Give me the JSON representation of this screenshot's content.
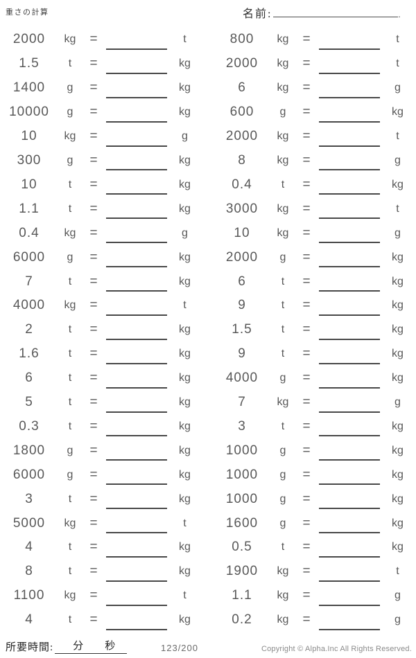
{
  "header": {
    "title": "重さの計算",
    "name_label": "名前:",
    "name_suffix": "."
  },
  "equals": "=",
  "columns": [
    {
      "problems": [
        {
          "value": "2000",
          "from": "kg",
          "to": "t"
        },
        {
          "value": "1.5",
          "from": "t",
          "to": "kg"
        },
        {
          "value": "1400",
          "from": "g",
          "to": "kg"
        },
        {
          "value": "10000",
          "from": "g",
          "to": "kg"
        },
        {
          "value": "10",
          "from": "kg",
          "to": "g"
        },
        {
          "value": "300",
          "from": "g",
          "to": "kg"
        },
        {
          "value": "10",
          "from": "t",
          "to": "kg"
        },
        {
          "value": "1.1",
          "from": "t",
          "to": "kg"
        },
        {
          "value": "0.4",
          "from": "kg",
          "to": "g"
        },
        {
          "value": "6000",
          "from": "g",
          "to": "kg"
        },
        {
          "value": "7",
          "from": "t",
          "to": "kg"
        },
        {
          "value": "4000",
          "from": "kg",
          "to": "t"
        },
        {
          "value": "2",
          "from": "t",
          "to": "kg"
        },
        {
          "value": "1.6",
          "from": "t",
          "to": "kg"
        },
        {
          "value": "6",
          "from": "t",
          "to": "kg"
        },
        {
          "value": "5",
          "from": "t",
          "to": "kg"
        },
        {
          "value": "0.3",
          "from": "t",
          "to": "kg"
        },
        {
          "value": "1800",
          "from": "g",
          "to": "kg"
        },
        {
          "value": "6000",
          "from": "g",
          "to": "kg"
        },
        {
          "value": "3",
          "from": "t",
          "to": "kg"
        },
        {
          "value": "5000",
          "from": "kg",
          "to": "t"
        },
        {
          "value": "4",
          "from": "t",
          "to": "kg"
        },
        {
          "value": "8",
          "from": "t",
          "to": "kg"
        },
        {
          "value": "1100",
          "from": "kg",
          "to": "t"
        },
        {
          "value": "4",
          "from": "t",
          "to": "kg"
        }
      ]
    },
    {
      "problems": [
        {
          "value": "800",
          "from": "kg",
          "to": "t"
        },
        {
          "value": "2000",
          "from": "kg",
          "to": "t"
        },
        {
          "value": "6",
          "from": "kg",
          "to": "g"
        },
        {
          "value": "600",
          "from": "g",
          "to": "kg"
        },
        {
          "value": "2000",
          "from": "kg",
          "to": "t"
        },
        {
          "value": "8",
          "from": "kg",
          "to": "g"
        },
        {
          "value": "0.4",
          "from": "t",
          "to": "kg"
        },
        {
          "value": "3000",
          "from": "kg",
          "to": "t"
        },
        {
          "value": "10",
          "from": "kg",
          "to": "g"
        },
        {
          "value": "2000",
          "from": "g",
          "to": "kg"
        },
        {
          "value": "6",
          "from": "t",
          "to": "kg"
        },
        {
          "value": "9",
          "from": "t",
          "to": "kg"
        },
        {
          "value": "1.5",
          "from": "t",
          "to": "kg"
        },
        {
          "value": "9",
          "from": "t",
          "to": "kg"
        },
        {
          "value": "4000",
          "from": "g",
          "to": "kg"
        },
        {
          "value": "7",
          "from": "kg",
          "to": "g"
        },
        {
          "value": "3",
          "from": "t",
          "to": "kg"
        },
        {
          "value": "1000",
          "from": "g",
          "to": "kg"
        },
        {
          "value": "1000",
          "from": "g",
          "to": "kg"
        },
        {
          "value": "1000",
          "from": "g",
          "to": "kg"
        },
        {
          "value": "1600",
          "from": "g",
          "to": "kg"
        },
        {
          "value": "0.5",
          "from": "t",
          "to": "kg"
        },
        {
          "value": "1900",
          "from": "kg",
          "to": "t"
        },
        {
          "value": "1.1",
          "from": "kg",
          "to": "g"
        },
        {
          "value": "0.2",
          "from": "kg",
          "to": "g"
        }
      ]
    }
  ],
  "footer": {
    "time_label": "所要時間:",
    "minutes_label": "分",
    "seconds_label": "秒",
    "page": "123/200",
    "copyright": "Copyright © Alpha.Inc All Rights Reserved."
  }
}
